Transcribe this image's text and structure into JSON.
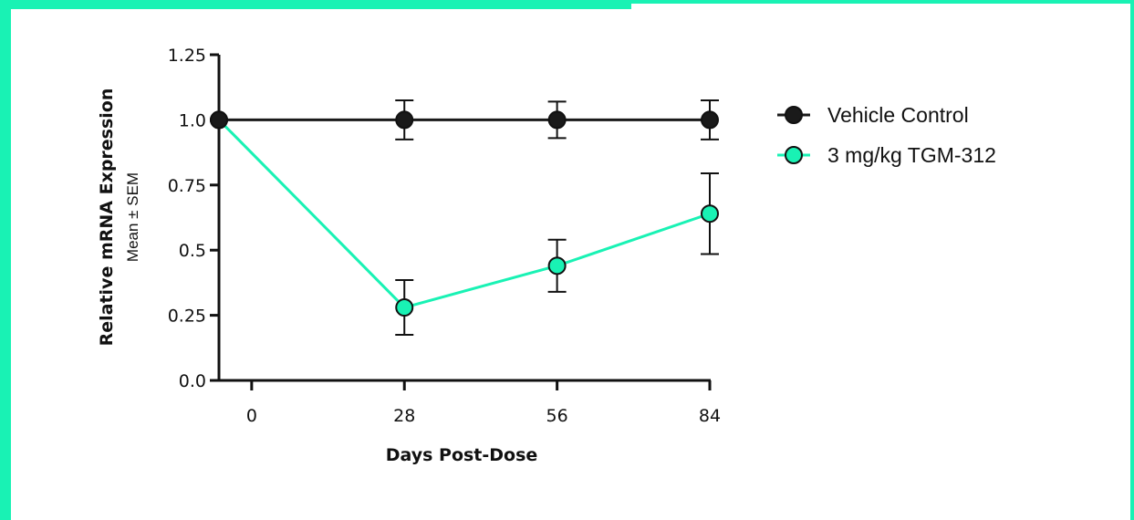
{
  "colors": {
    "accent": "#19f2b4",
    "control": "#1a1a1a",
    "treatment": "#19f2b4",
    "axis": "#111111"
  },
  "chart_data": {
    "type": "line",
    "title": "",
    "xlabel": "Days Post-Dose",
    "ylabel": "Relative mRNA Expression",
    "ylabel_sub": "Mean ± SEM",
    "x": [
      0,
      28,
      56,
      84
    ],
    "x_tick_labels": [
      "0",
      "28",
      "56",
      "84"
    ],
    "y_ticks": [
      0,
      0.25,
      0.5,
      0.75,
      1.0,
      1.25
    ],
    "y_tick_labels": [
      "0.0",
      "0.25",
      "0.5",
      "0.75",
      "1.0",
      "1.25"
    ],
    "xlim": [
      -6,
      84
    ],
    "ylim": [
      0,
      1.25
    ],
    "grid": false,
    "legend_position": "right",
    "series": [
      {
        "name": "Vehicle Control",
        "color": "#1a1a1a",
        "values": [
          1.0,
          1.0,
          1.0,
          1.0
        ],
        "sem": [
          0,
          0.075,
          0.07,
          0.075
        ]
      },
      {
        "name": "3 mg/kg TGM-312",
        "color": "#19f2b4",
        "values": [
          1.0,
          0.28,
          0.44,
          0.64
        ],
        "sem": [
          0,
          0.105,
          0.1,
          0.155
        ]
      }
    ],
    "x_first_point_override": -6
  }
}
